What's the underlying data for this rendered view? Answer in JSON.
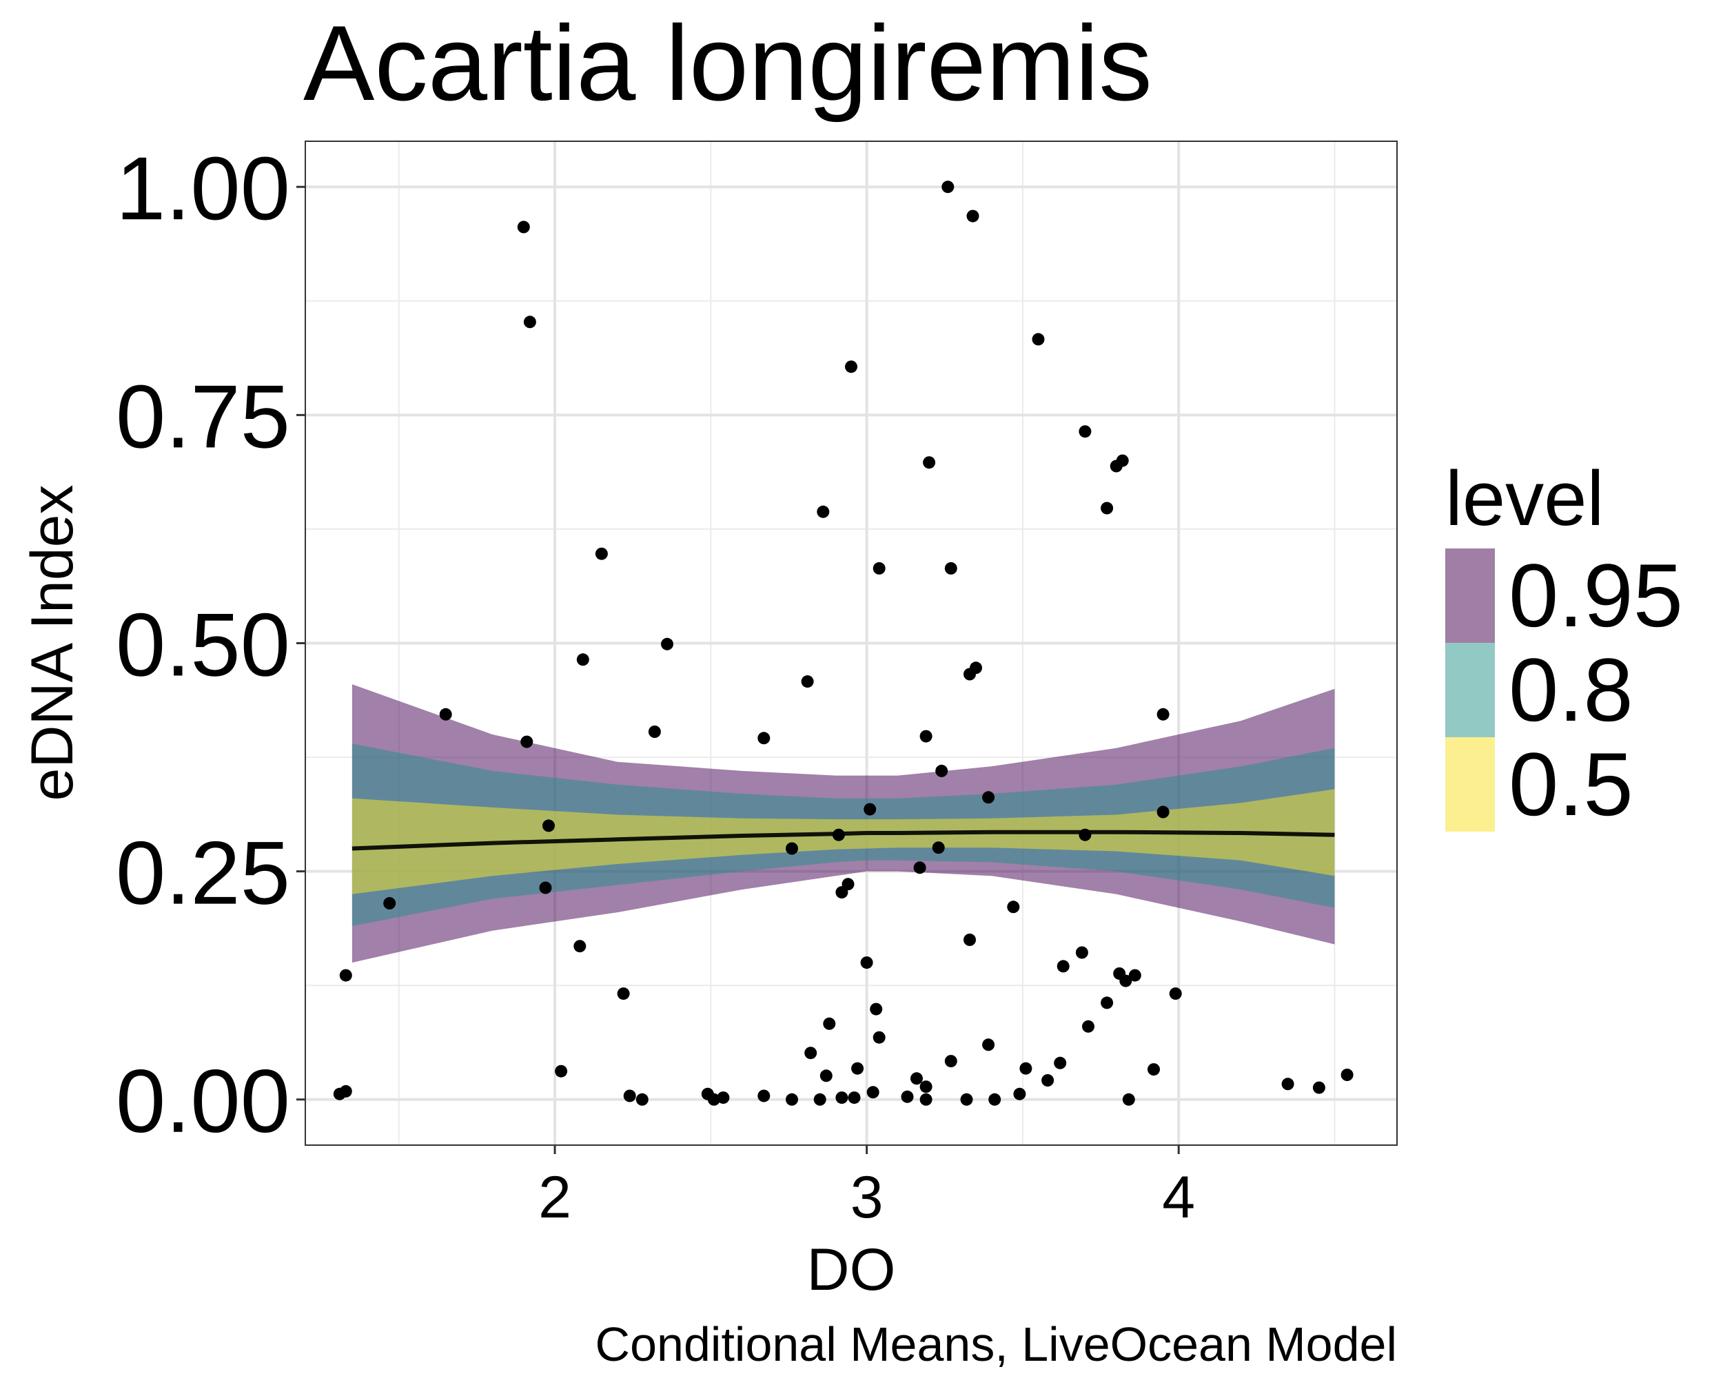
{
  "chart_data": {
    "type": "scatter",
    "title": "Acartia longiremis",
    "xlabel": "DO",
    "ylabel": "eDNA Index",
    "caption": "Conditional Means, LiveOcean Model",
    "xlim": [
      1.2,
      4.7
    ],
    "ylim": [
      -0.05,
      1.05
    ],
    "x_ticks": [
      2,
      3,
      4
    ],
    "x_tick_labels": [
      "2",
      "3",
      "4"
    ],
    "y_ticks": [
      0,
      0.25,
      0.5,
      0.75,
      1.0
    ],
    "y_tick_labels": [
      "0.00",
      "0.25",
      "0.50",
      "0.75",
      "1.00"
    ],
    "grid": true,
    "legend": {
      "title": "level",
      "position": "right",
      "entries": [
        {
          "label": "0.95",
          "color": "#a07ea5"
        },
        {
          "label": "0.8",
          "color": "#93c9c4"
        },
        {
          "label": "0.5",
          "color": "#fcef8f"
        }
      ]
    },
    "ribbons": {
      "x": [
        1.35,
        1.8,
        2.2,
        2.6,
        2.9,
        3.0,
        3.1,
        3.4,
        3.8,
        4.2,
        4.5
      ],
      "lower_95": [
        0.15,
        0.185,
        0.205,
        0.23,
        0.245,
        0.25,
        0.25,
        0.245,
        0.225,
        0.195,
        0.17
      ],
      "upper_95": [
        0.455,
        0.4,
        0.37,
        0.36,
        0.355,
        0.355,
        0.355,
        0.365,
        0.385,
        0.415,
        0.45
      ],
      "lower_80": [
        0.19,
        0.22,
        0.235,
        0.25,
        0.26,
        0.262,
        0.262,
        0.26,
        0.25,
        0.23,
        0.21
      ],
      "upper_80": [
        0.39,
        0.36,
        0.345,
        0.335,
        0.33,
        0.33,
        0.33,
        0.335,
        0.345,
        0.365,
        0.385
      ],
      "lower_50": [
        0.225,
        0.245,
        0.258,
        0.268,
        0.274,
        0.275,
        0.276,
        0.276,
        0.272,
        0.262,
        0.245
      ],
      "upper_50": [
        0.33,
        0.32,
        0.312,
        0.308,
        0.307,
        0.307,
        0.307,
        0.308,
        0.312,
        0.325,
        0.34
      ]
    },
    "mean_line": {
      "x": [
        1.35,
        1.8,
        2.2,
        2.6,
        2.9,
        3.0,
        3.1,
        3.4,
        3.8,
        4.2,
        4.5
      ],
      "y": [
        0.275,
        0.281,
        0.285,
        0.289,
        0.291,
        0.292,
        0.292,
        0.293,
        0.293,
        0.292,
        0.29
      ]
    },
    "points": {
      "x": [
        1.9,
        1.92,
        3.26,
        3.34,
        3.55,
        2.95,
        3.7,
        3.8,
        3.82,
        3.2,
        3.77,
        2.86,
        2.15,
        3.04,
        3.27,
        2.09,
        2.36,
        3.35,
        3.33,
        2.81,
        3.95,
        1.65,
        2.32,
        2.67,
        1.91,
        3.19,
        3.24,
        3.39,
        3.01,
        1.98,
        2.76,
        2.91,
        3.7,
        3.95,
        3.23,
        3.17,
        2.94,
        1.97,
        2.92,
        1.47,
        3.47,
        2.08,
        3.33,
        3.69,
        3.0,
        3.63,
        1.33,
        3.81,
        3.86,
        3.83,
        2.22,
        3.99,
        3.77,
        3.03,
        3.71,
        2.88,
        3.04,
        3.39,
        2.82,
        3.27,
        3.62,
        2.97,
        2.02,
        3.51,
        3.92,
        2.87,
        3.58,
        3.16,
        4.54,
        3.19,
        4.35,
        4.45,
        1.31,
        1.33,
        3.02,
        3.49,
        2.24,
        2.49,
        2.67,
        2.54,
        2.92,
        2.96,
        3.13,
        3.32,
        3.41,
        2.28,
        2.51,
        2.76,
        2.85,
        3.19,
        3.84
      ],
      "y": [
        0.956,
        0.852,
        1.0,
        0.968,
        0.833,
        0.803,
        0.732,
        0.694,
        0.7,
        0.698,
        0.648,
        0.644,
        0.598,
        0.582,
        0.582,
        0.482,
        0.499,
        0.473,
        0.466,
        0.458,
        0.422,
        0.422,
        0.403,
        0.396,
        0.392,
        0.398,
        0.36,
        0.331,
        0.318,
        0.3,
        0.275,
        0.29,
        0.29,
        0.315,
        0.276,
        0.254,
        0.236,
        0.232,
        0.227,
        0.215,
        0.211,
        0.168,
        0.175,
        0.161,
        0.15,
        0.146,
        0.136,
        0.138,
        0.136,
        0.13,
        0.116,
        0.116,
        0.106,
        0.099,
        0.08,
        0.083,
        0.068,
        0.06,
        0.051,
        0.042,
        0.04,
        0.034,
        0.031,
        0.034,
        0.033,
        0.026,
        0.021,
        0.023,
        0.027,
        0.014,
        0.017,
        0.013,
        0.006,
        0.009,
        0.008,
        0.006,
        0.004,
        0.006,
        0.004,
        0.002,
        0.002,
        0.002,
        0.003,
        0.0,
        0.0,
        0.0,
        0.0,
        0.0,
        0.0,
        0.0,
        0.0
      ]
    }
  }
}
